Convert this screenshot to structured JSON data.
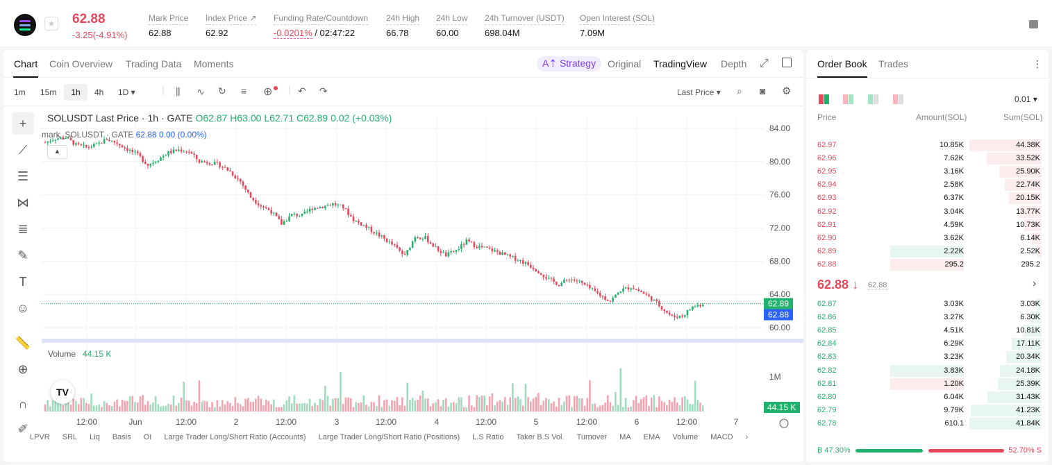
{
  "header": {
    "last_price": "62.88",
    "change": "-3.25(-4.91%)",
    "stats": [
      {
        "label": "Mark Price",
        "value": "62.88",
        "x": 214
      },
      {
        "label": "Index Price ↗",
        "value": "62.92",
        "x": 296
      },
      {
        "label": "Funding Rate/Countdown",
        "value": "-0.0201%",
        "value2": " / 02:47:22",
        "x": 394
      },
      {
        "label": "24h High",
        "value": "66.78",
        "x": 556
      },
      {
        "label": "24h Low",
        "value": "60.00",
        "x": 628
      },
      {
        "label": "24h Turnover (USDT)",
        "value": "698.04M",
        "x": 698
      },
      {
        "label": "Open Interest (SOL)",
        "value": "7.09M",
        "x": 835
      }
    ]
  },
  "chart_tabs": {
    "chart": "Chart",
    "overview": "Coin Overview",
    "trading": "Trading Data",
    "moments": "Moments",
    "strategy": "A⇡ Strategy",
    "original": "Original",
    "tradingview": "TradingView",
    "depth": "Depth"
  },
  "intervals": {
    "m1": "1m",
    "m15": "15m",
    "h1": "1h",
    "h4": "4h",
    "d1": "1D ▾"
  },
  "last_price_select": "Last Price ▾",
  "legend": {
    "symbol": "SOLUSDT Last Price · 1h · GATE",
    "o": "O62.87",
    "h": "H63.00",
    "l": "L62.71",
    "c": "C62.89",
    "chg": "0.02 (+0.03%)",
    "mark": "mark_SOLUSDT · GATE",
    "mark_v": "62.88",
    "mark_c": "0.00 (0.00%)"
  },
  "volume": {
    "label": "Volume",
    "value": "44.15 K",
    "axis": "1M"
  },
  "chart_data": {
    "type": "candlestick",
    "interval": "1h",
    "price_axis": [
      "84.00",
      "80.00",
      "76.00",
      "72.00",
      "68.00",
      "64.00",
      "60.00"
    ],
    "ylim": [
      58.5,
      85.5
    ],
    "x_labels": [
      "12:00",
      "Jun",
      "12:00",
      "2",
      "12:00",
      "3",
      "12:00",
      "4",
      "12:00",
      "5",
      "12:00",
      "6",
      "12:00",
      "7"
    ],
    "last": "62.89",
    "mark": "62.88",
    "volume_last": "44.15 K",
    "path": [
      [
        0,
        82.3
      ],
      [
        4,
        82.8
      ],
      [
        8,
        82.9
      ],
      [
        12,
        82.0
      ],
      [
        16,
        81.7
      ],
      [
        20,
        82.0
      ],
      [
        24,
        82.7
      ],
      [
        28,
        82.2
      ],
      [
        32,
        81.5
      ],
      [
        36,
        80.8
      ],
      [
        40,
        79.6
      ],
      [
        44,
        80.3
      ],
      [
        48,
        81.1
      ],
      [
        52,
        81.4
      ],
      [
        56,
        81.2
      ],
      [
        60,
        80.0
      ],
      [
        64,
        79.9
      ],
      [
        68,
        79.6
      ],
      [
        72,
        78.8
      ],
      [
        76,
        77.6
      ],
      [
        80,
        75.7
      ],
      [
        84,
        74.7
      ],
      [
        88,
        74.0
      ],
      [
        92,
        72.5
      ],
      [
        96,
        73.6
      ],
      [
        100,
        73.5
      ],
      [
        104,
        74.4
      ],
      [
        108,
        74.6
      ],
      [
        112,
        74.9
      ],
      [
        116,
        74.5
      ],
      [
        120,
        73.0
      ],
      [
        124,
        72.3
      ],
      [
        128,
        71.5
      ],
      [
        132,
        70.7
      ],
      [
        136,
        69.8
      ],
      [
        140,
        68.6
      ],
      [
        144,
        71.0
      ],
      [
        148,
        70.8
      ],
      [
        152,
        69.6
      ],
      [
        156,
        68.7
      ],
      [
        160,
        69.3
      ],
      [
        164,
        70.4
      ],
      [
        168,
        69.8
      ],
      [
        172,
        69.5
      ],
      [
        176,
        69.1
      ],
      [
        180,
        68.6
      ],
      [
        184,
        68.2
      ],
      [
        188,
        67.6
      ],
      [
        192,
        66.8
      ],
      [
        196,
        65.8
      ],
      [
        200,
        65.2
      ],
      [
        204,
        65.9
      ],
      [
        208,
        65.5
      ],
      [
        212,
        64.7
      ],
      [
        216,
        63.9
      ],
      [
        220,
        63.2
      ],
      [
        224,
        64.5
      ],
      [
        228,
        64.9
      ],
      [
        232,
        64.3
      ],
      [
        236,
        63.5
      ],
      [
        240,
        62.4
      ],
      [
        244,
        61.3
      ],
      [
        248,
        61.4
      ],
      [
        252,
        62.5
      ],
      [
        256,
        62.89
      ]
    ]
  },
  "bottom_indicators": [
    "LPVR",
    "SRL",
    "Liq",
    "Basis",
    "OI",
    "Large Trader Long/Short Ratio (Accounts)",
    "Large Trader Long/Short Ratio (Positions)",
    "L.S Ratio",
    "Taker B.S Vol.",
    "Turnover",
    "MA",
    "EMA",
    "Volume",
    "MACD"
  ],
  "orderbook": {
    "tab_book": "Order Book",
    "tab_trades": "Trades",
    "precision": "0.01 ▾",
    "col_price": "Price",
    "col_amount": "Amount(SOL)",
    "col_sum": "Sum(SOL)",
    "asks": [
      [
        "62.97",
        "10.85K",
        "44.38K",
        1.0
      ],
      [
        "62.96",
        "7.62K",
        "33.52K",
        0.755
      ],
      [
        "62.95",
        "3.16K",
        "25.90K",
        0.584
      ],
      [
        "62.94",
        "2.58K",
        "22.74K",
        0.512
      ],
      [
        "62.93",
        "6.37K",
        "20.15K",
        0.454
      ],
      [
        "62.92",
        "3.04K",
        "13.77K",
        0.31
      ],
      [
        "62.91",
        "4.59K",
        "10.73K",
        0.242
      ],
      [
        "62.90",
        "3.62K",
        "6.14K",
        0.138
      ],
      [
        "62.89",
        "2.22K",
        "2.52K",
        0.057
      ],
      [
        "62.88",
        "295.2",
        "295.2",
        0.007
      ]
    ],
    "mid_price": "62.88 ↓",
    "mid_mark": "62.88",
    "bids": [
      [
        "62.87",
        "3.03K",
        "3.03K",
        0.072
      ],
      [
        "62.86",
        "3.27K",
        "6.30K",
        0.151
      ],
      [
        "62.85",
        "4.51K",
        "10.81K",
        0.258
      ],
      [
        "62.84",
        "6.29K",
        "17.11K",
        0.409
      ],
      [
        "62.83",
        "3.23K",
        "20.34K",
        0.486
      ],
      [
        "62.82",
        "3.83K",
        "24.18K",
        0.578
      ],
      [
        "62.81",
        "1.20K",
        "25.39K",
        0.607
      ],
      [
        "62.80",
        "6.04K",
        "31.43K",
        0.751
      ],
      [
        "62.79",
        "9.79K",
        "41.23K",
        0.985
      ],
      [
        "62.78",
        "610.1",
        "41.84K",
        1.0
      ]
    ],
    "buy_ratio": "B 47.30%",
    "sell_ratio": "52.70% S",
    "buy_pct": 47.3
  },
  "colors": {
    "up": "#20b26c",
    "down": "#e6475a",
    "accent": "#7b3fe4"
  }
}
